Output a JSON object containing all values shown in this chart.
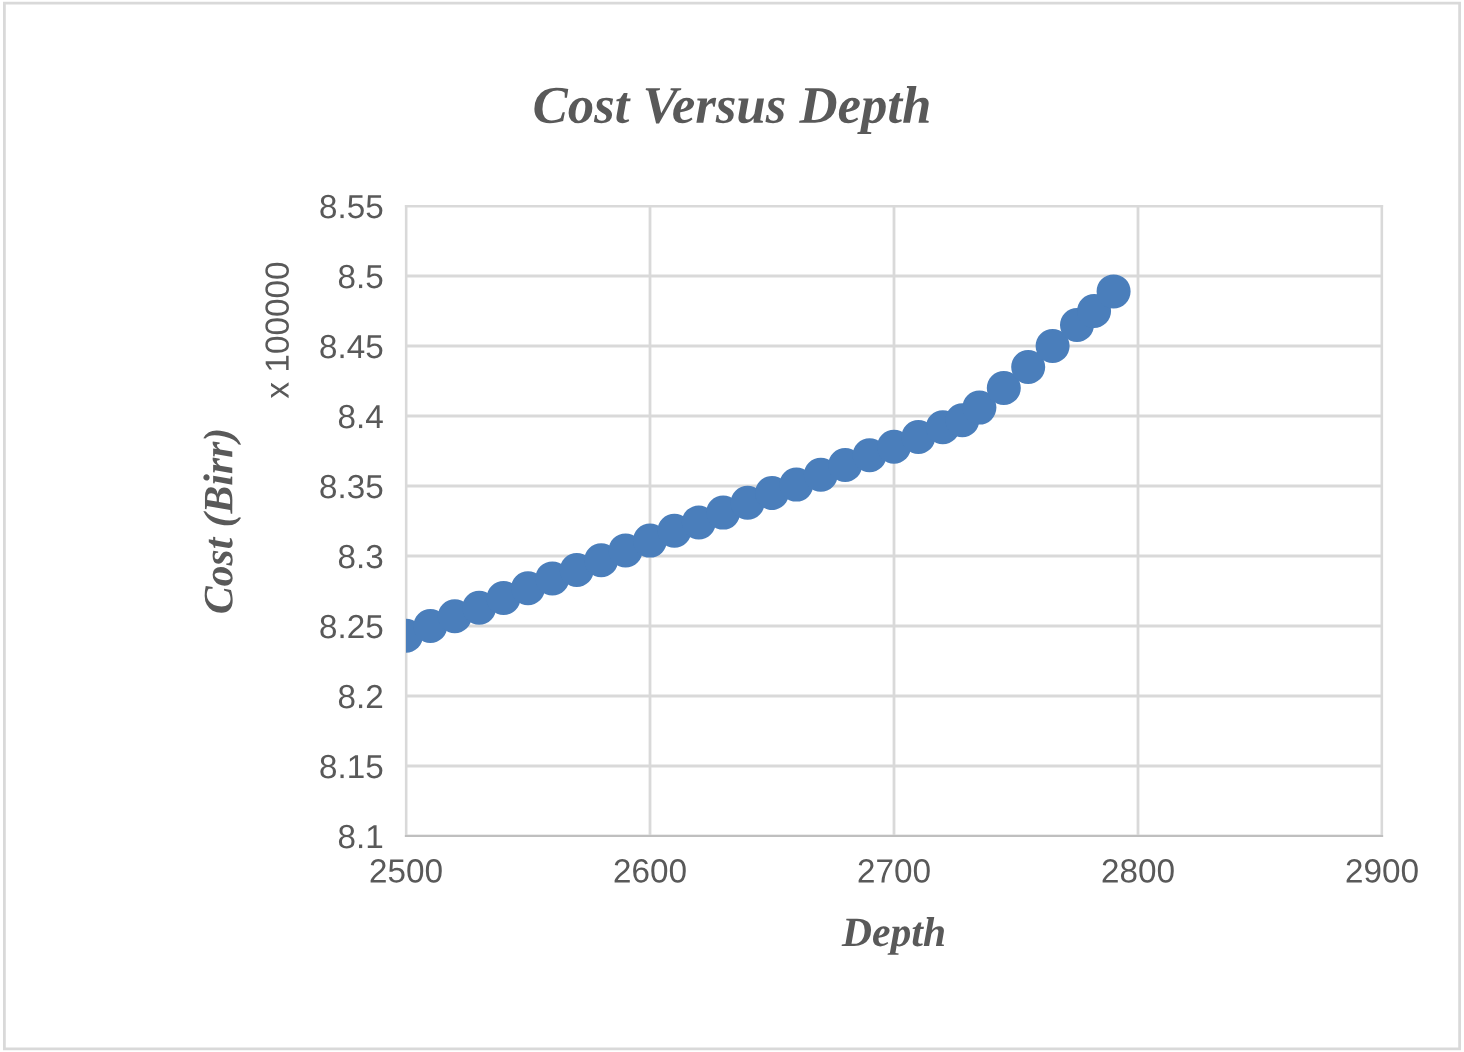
{
  "chart_data": {
    "type": "scatter",
    "title": "Cost Versus Depth",
    "xlabel": "Depth",
    "ylabel": "Cost (Birr)",
    "annotations": [
      "x 100000"
    ],
    "x": [
      2500,
      2510,
      2520,
      2530,
      2540,
      2550,
      2560,
      2570,
      2580,
      2590,
      2600,
      2610,
      2620,
      2630,
      2640,
      2650,
      2660,
      2670,
      2680,
      2690,
      2700,
      2710,
      2720,
      2728,
      2735,
      2745,
      2755,
      2765,
      2775,
      2782,
      2790
    ],
    "series": [
      {
        "color": "#4a7ebb",
        "values": [
          8.243,
          8.25,
          8.257,
          8.263,
          8.27,
          8.277,
          8.284,
          8.29,
          8.297,
          8.304,
          8.311,
          8.318,
          8.324,
          8.331,
          8.338,
          8.345,
          8.351,
          8.358,
          8.365,
          8.372,
          8.378,
          8.385,
          8.392,
          8.397,
          8.406,
          8.42,
          8.435,
          8.45,
          8.465,
          8.475,
          8.489
        ]
      }
    ],
    "xlim": [
      2500,
      2900
    ],
    "xticks": [
      2500,
      2600,
      2700,
      2800,
      2900
    ],
    "ylim": [
      8.1,
      8.55
    ],
    "yticks": [
      {
        "value": 8.1,
        "label": "8.1"
      },
      {
        "value": 8.15,
        "label": "8.15"
      },
      {
        "value": 8.2,
        "label": "8.2"
      },
      {
        "value": 8.25,
        "label": "8.25"
      },
      {
        "value": 8.3,
        "label": "8.3"
      },
      {
        "value": 8.35,
        "label": "8.35"
      },
      {
        "value": 8.4,
        "label": "8.4"
      },
      {
        "value": 8.45,
        "label": "8.45"
      },
      {
        "value": 8.5,
        "label": "8.5"
      },
      {
        "value": 8.55,
        "label": "8.55"
      }
    ],
    "grid": true,
    "marker": "circle"
  }
}
